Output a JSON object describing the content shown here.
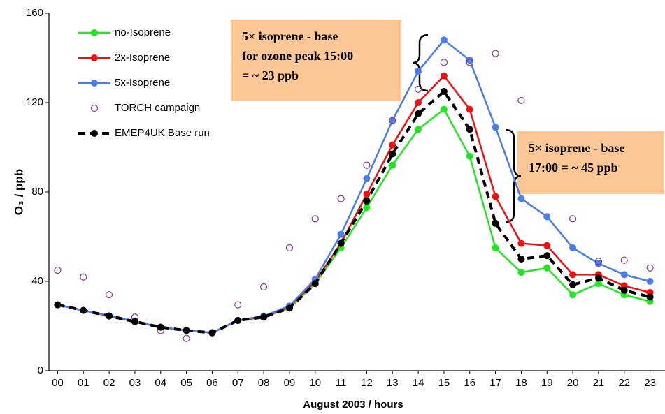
{
  "chart_data": {
    "type": "line",
    "x_label": "August 2003 / hours",
    "y_label": "O₃ / ppb",
    "categories": [
      "00",
      "01",
      "02",
      "03",
      "04",
      "05",
      "06",
      "07",
      "08",
      "09",
      "10",
      "11",
      "12",
      "13",
      "14",
      "15",
      "16",
      "17",
      "18",
      "19",
      "20",
      "21",
      "22",
      "23"
    ],
    "ylim": [
      0,
      160
    ],
    "yticks": [
      0,
      40,
      80,
      120,
      160
    ],
    "grid": false,
    "legend": "top-left",
    "series": [
      {
        "name": "no-Isoprene",
        "color": "#22e622",
        "line": "solid",
        "marker": "dot",
        "values": [
          29.5,
          27,
          24.5,
          22,
          19.5,
          18,
          17,
          22.5,
          24,
          28,
          39,
          55,
          73,
          92,
          108,
          117,
          96,
          55,
          44,
          46,
          34,
          39,
          34,
          31
        ]
      },
      {
        "name": "2x-Isoprene",
        "color": "#ee1111",
        "line": "solid",
        "marker": "dot",
        "values": [
          29.5,
          27,
          24.5,
          22,
          19.5,
          18,
          17,
          22.5,
          24,
          28.5,
          40,
          57,
          79,
          101,
          120,
          132,
          117,
          78,
          57,
          56,
          43,
          43,
          38,
          35
        ]
      },
      {
        "name": "5x-Isoprene",
        "color": "#4a7de8",
        "line": "solid",
        "marker": "dot",
        "values": [
          29.5,
          27,
          24.5,
          22,
          19.5,
          18,
          17,
          22.5,
          24.5,
          29,
          41,
          61,
          86,
          112,
          134,
          148,
          139,
          109,
          77,
          69,
          55,
          48,
          43,
          40
        ]
      },
      {
        "name": "TORCH campaign",
        "color": "#8a3a8a",
        "line": "none",
        "marker": "open-circle",
        "values": [
          45,
          42,
          34,
          24,
          18,
          14.5,
          17,
          29.5,
          37.5,
          55,
          68,
          77,
          92,
          112,
          126,
          138,
          138,
          142,
          121,
          null,
          68,
          49,
          49.5,
          46
        ]
      },
      {
        "name": "EMEP4UK Base run",
        "color": "#000000",
        "line": "dashed",
        "marker": "dot",
        "values": [
          29.5,
          27,
          24.5,
          22,
          19.5,
          18,
          17,
          22.5,
          24,
          28,
          39,
          57,
          76,
          97,
          115,
          125,
          108,
          66,
          50,
          51.5,
          38.5,
          41.5,
          36,
          33
        ]
      }
    ],
    "annotations": [
      {
        "lines": [
          "5× isoprene - base",
          "for ozone peak 15:00",
          "= ~ 23 ppb"
        ]
      },
      {
        "lines": [
          "5× isoprene - base",
          "17:00 = ~ 45 ppb"
        ]
      }
    ]
  }
}
